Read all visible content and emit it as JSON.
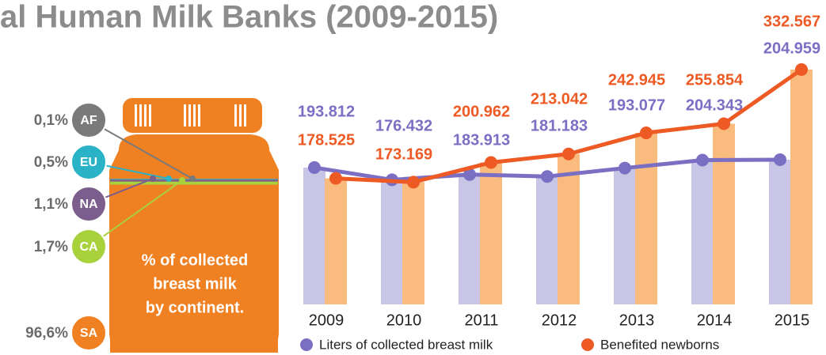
{
  "chart_data": [
    {
      "type": "bar-line",
      "title": "al Human Milk Banks (2009-2015)",
      "categories": [
        "2009",
        "2010",
        "2011",
        "2012",
        "2013",
        "2014",
        "2015"
      ],
      "series": [
        {
          "name": "Liters of collected breast milk",
          "color": "#7b6fc4",
          "bar_color": "#c9c5e6",
          "values": [
            193812,
            176432,
            183913,
            181183,
            193077,
            204343,
            204959
          ],
          "value_labels": [
            "193.812",
            "176.432",
            "183.913",
            "181.183",
            "193.077",
            "204.343",
            "204.959"
          ]
        },
        {
          "name": "Benefited newborns",
          "color": "#ee5a24",
          "bar_color": "#f9bb7e",
          "values": [
            178525,
            173169,
            200962,
            213042,
            242945,
            255854,
            332567
          ],
          "value_labels": [
            "178.525",
            "173.169",
            "200.962",
            "213.042",
            "242.945",
            "255.854",
            "332.567"
          ]
        }
      ]
    },
    {
      "type": "jar",
      "caption": [
        "% of collected",
        "breast milk",
        "by continent."
      ],
      "categories": [
        "AF",
        "EU",
        "NA",
        "CA",
        "SA"
      ],
      "values": [
        0.1,
        0.5,
        1.1,
        1.7,
        96.6
      ],
      "value_labels": [
        "0,1%",
        "0,5%",
        "1,1%",
        "1,7%",
        "96,6%"
      ],
      "colors": [
        "#7a7a7a",
        "#2ab3c6",
        "#7b5d8e",
        "#a8d13c",
        "#f08123"
      ]
    }
  ]
}
